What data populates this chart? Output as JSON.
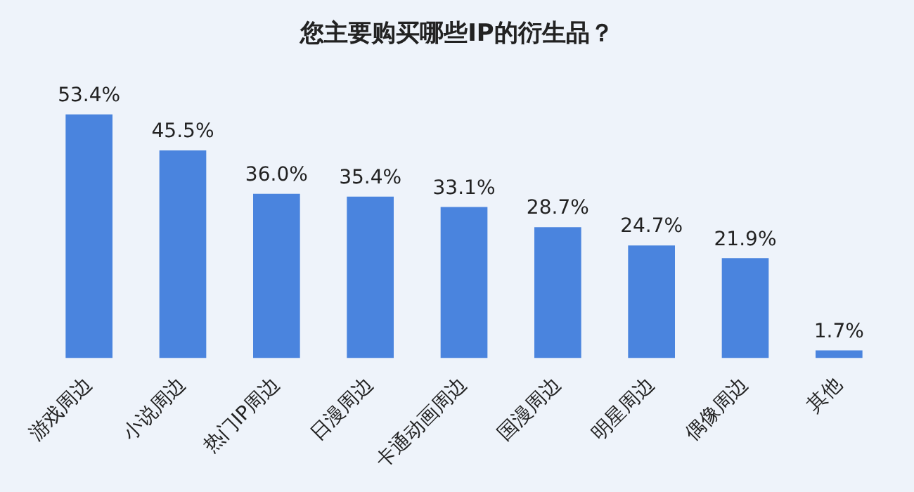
{
  "chart_data": {
    "type": "bar",
    "title": "您主要购买哪些IP的衍生品？",
    "categories": [
      "游戏周边",
      "小说周边",
      "热门IP周边",
      "日漫周边",
      "卡通动画周边",
      "国漫周边",
      "明星周边",
      "偶像周边",
      "其他"
    ],
    "values": [
      53.4,
      45.5,
      36.0,
      35.4,
      33.1,
      28.7,
      24.7,
      21.9,
      1.7
    ],
    "value_labels": [
      "53.4%",
      "45.5%",
      "36.0%",
      "35.4%",
      "33.1%",
      "28.7%",
      "24.7%",
      "21.9%",
      "1.7%"
    ],
    "color": "#4a84de",
    "tick_labels": "x",
    "grid": false,
    "legend": false
  }
}
